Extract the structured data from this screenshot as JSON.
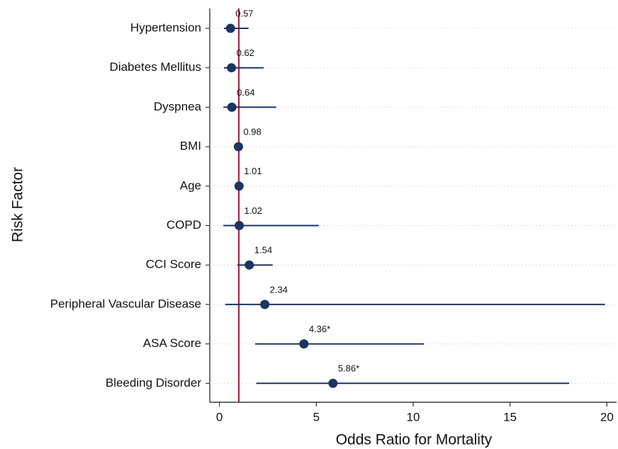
{
  "chart_data": {
    "type": "forest",
    "xlabel": "Odds Ratio for Mortality",
    "ylabel": "Risk Factor",
    "categories": [
      "Hypertension",
      "Diabetes Mellitus",
      "Dyspnea",
      "BMI",
      "Age",
      "COPD",
      "CCI Score",
      "Peripheral Vascular Disease",
      "ASA Score",
      "Bleeding Disorder"
    ],
    "values": [
      0.57,
      0.62,
      0.64,
      0.98,
      1.01,
      1.02,
      1.54,
      2.34,
      4.36,
      5.86
    ],
    "value_labels": [
      "0.57",
      "0.62",
      "0.64",
      "0.98",
      "1.01",
      "1.02",
      "1.54",
      "2.34",
      "4.36*",
      "5.86*"
    ],
    "ci_lower": [
      0.23,
      0.23,
      0.2,
      0.95,
      0.99,
      0.2,
      0.92,
      0.3,
      1.84,
      1.9
    ],
    "ci_upper": [
      1.5,
      2.28,
      2.93,
      1.02,
      1.03,
      5.13,
      2.75,
      19.9,
      10.55,
      18.05
    ],
    "color": "#1c3461",
    "reference_line": 1,
    "reference_color": "#a3213c",
    "xlim": [
      -0.5,
      20.5
    ],
    "xticks": [
      0,
      5,
      10,
      15,
      20
    ],
    "grid": true
  }
}
